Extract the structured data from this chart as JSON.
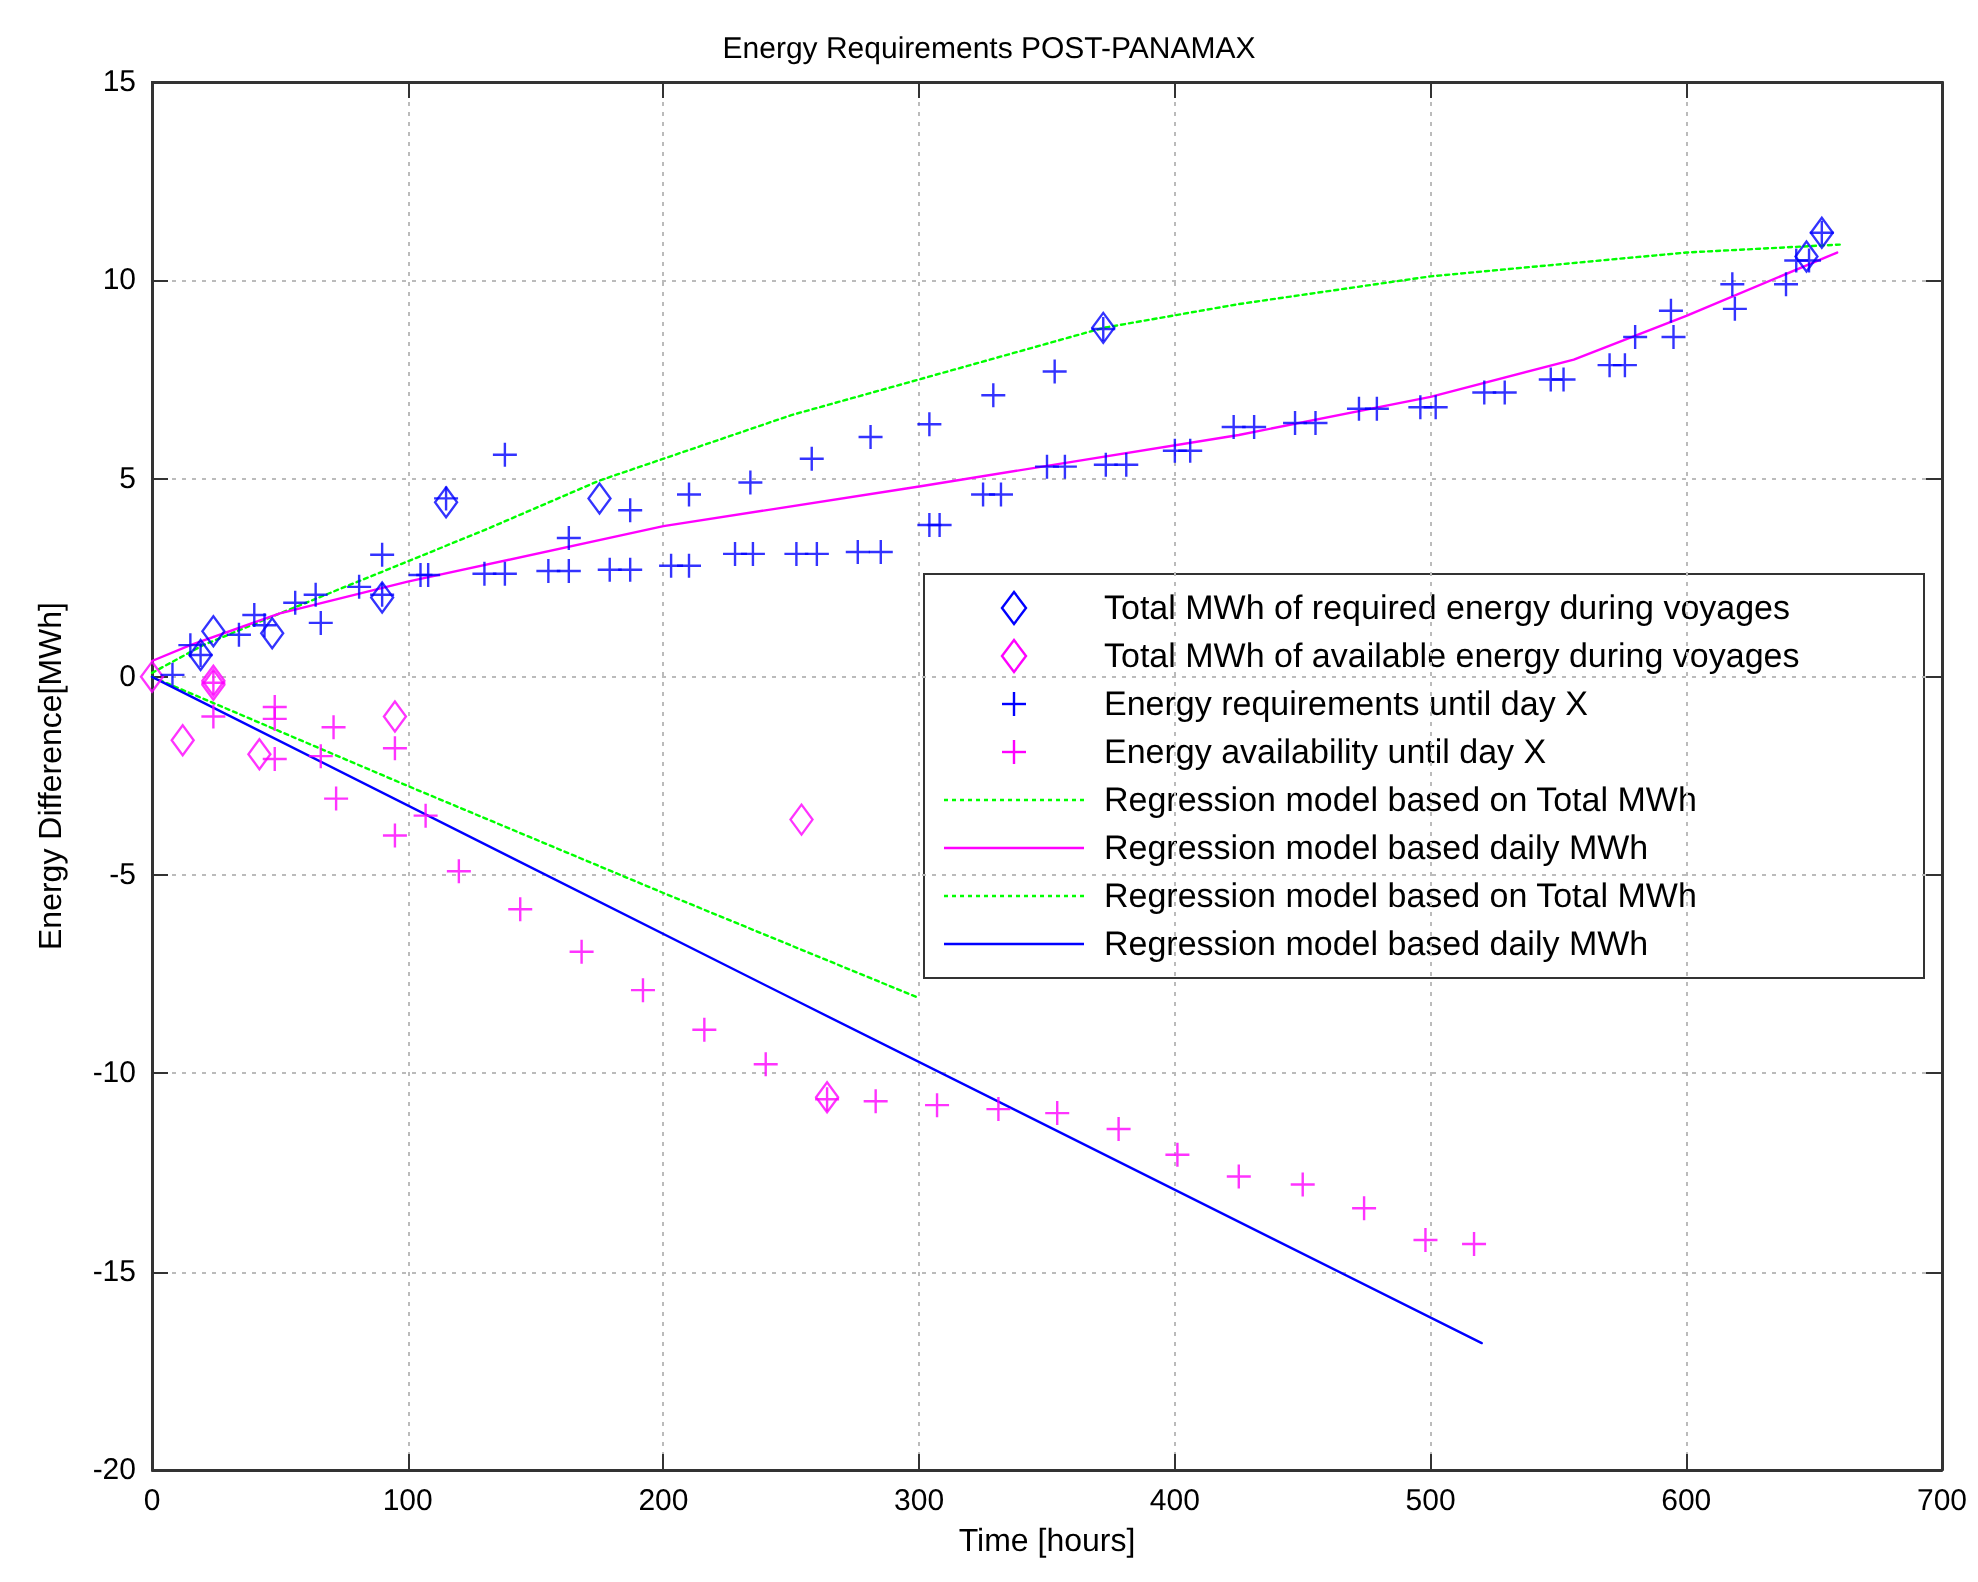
{
  "chart_data": {
    "type": "scatter",
    "title": "Energy Requirements POST-PANAMAX",
    "xlabel": "Time [hours]",
    "ylabel": "Energy Difference[MWh]",
    "xlim": [
      0,
      700
    ],
    "xticks": [
      0,
      100,
      200,
      300,
      400,
      500,
      600,
      700
    ],
    "ylim": [
      -20,
      15
    ],
    "yticks": [
      -20,
      -15,
      -10,
      -5,
      0,
      5,
      10,
      15
    ],
    "grid": true,
    "legend": "right",
    "series": [
      {
        "name": "Total MWh of required energy during voyages",
        "marker": "diamond",
        "color": "#0000ff",
        "x": [
          19,
          24,
          47,
          90,
          115,
          175,
          372,
          647,
          653
        ],
        "values": [
          0.55,
          1.15,
          1.1,
          2.0,
          4.4,
          4.5,
          8.8,
          10.6,
          11.2
        ]
      },
      {
        "name": "Total MWh of available energy during voyages",
        "marker": "diamond",
        "color": "#ff00ff",
        "x": [
          0,
          12,
          24,
          24,
          42,
          95,
          254,
          264
        ],
        "values": [
          0,
          -1.6,
          -0.1,
          -0.2,
          -1.95,
          -1.0,
          -3.6,
          -10.6
        ]
      },
      {
        "name": "Energy requirements until day X",
        "marker": "cross",
        "color": "#0000ff",
        "x": [
          8,
          15,
          19,
          34,
          40,
          44,
          56,
          64,
          66,
          81,
          90,
          90,
          105,
          108,
          115,
          130,
          138,
          138,
          155,
          163,
          163,
          179,
          187,
          187,
          203,
          210,
          210,
          228,
          235,
          234,
          252,
          260,
          258,
          276,
          285,
          281,
          304,
          308,
          304,
          325,
          332,
          329,
          350,
          357,
          353,
          373,
          381,
          372,
          400,
          406,
          423,
          431,
          447,
          455,
          472,
          479,
          496,
          502,
          521,
          529,
          547,
          552,
          570,
          576,
          580,
          594,
          595,
          618,
          619,
          639,
          643,
          648,
          653
        ],
        "values": [
          0.05,
          0.8,
          0.55,
          1.06,
          1.56,
          1.3,
          1.87,
          2.07,
          1.36,
          2.27,
          3.08,
          2.07,
          2.57,
          2.57,
          4.5,
          2.6,
          2.6,
          5.6,
          2.67,
          2.67,
          3.5,
          2.7,
          2.7,
          4.2,
          2.8,
          2.8,
          4.6,
          3.1,
          3.1,
          4.9,
          3.1,
          3.1,
          5.5,
          3.15,
          3.15,
          6.05,
          3.83,
          3.83,
          6.37,
          4.6,
          4.6,
          7.1,
          5.3,
          5.3,
          7.7,
          5.35,
          5.35,
          8.77,
          5.7,
          5.7,
          6.3,
          6.3,
          6.4,
          6.4,
          6.76,
          6.76,
          6.8,
          6.8,
          7.17,
          7.17,
          7.5,
          7.5,
          7.86,
          7.86,
          8.57,
          9.23,
          8.57,
          9.9,
          9.28,
          9.9,
          10.5,
          10.5,
          11.2
        ]
      },
      {
        "name": "Energy availability until day X",
        "marker": "cross",
        "color": "#ff00ff",
        "x": [
          24,
          24,
          48,
          48,
          48,
          66,
          71,
          72,
          95,
          95,
          107,
          120,
          144,
          168,
          192,
          216,
          240,
          264,
          283,
          307,
          331,
          354,
          378,
          401,
          425,
          450,
          474,
          498,
          517
        ],
        "values": [
          -1.0,
          -0.15,
          -0.76,
          -1.06,
          -2.07,
          -2.0,
          -1.27,
          -3.07,
          -1.8,
          -4.0,
          -3.5,
          -4.9,
          -5.86,
          -6.93,
          -7.9,
          -8.9,
          -9.77,
          -10.65,
          -10.7,
          -10.8,
          -10.9,
          -11.0,
          -11.4,
          -12.05,
          -12.6,
          -12.8,
          -13.4,
          -14.2,
          -14.3
        ]
      },
      {
        "name": "Regression model based on Total MWh",
        "type": "line",
        "marker": "none",
        "line_style": "dotted",
        "color": "#00ff00",
        "x": [
          0,
          20,
          50,
          90,
          130,
          175,
          250,
          300,
          372,
          425,
          500,
          600,
          660
        ],
        "values": [
          0.1,
          0.8,
          1.6,
          2.65,
          3.7,
          4.95,
          6.6,
          7.5,
          8.8,
          9.4,
          10.1,
          10.7,
          10.9
        ]
      },
      {
        "name": "Regression model based daily MWh",
        "type": "line",
        "marker": "none",
        "line_style": "solid",
        "color": "#ff00ff",
        "x": [
          0,
          15,
          50,
          100,
          200,
          300,
          425,
          500,
          556,
          600,
          659
        ],
        "values": [
          0.4,
          0.8,
          1.6,
          2.4,
          3.8,
          4.8,
          6.1,
          7.06,
          8.0,
          9.1,
          10.7
        ]
      },
      {
        "name": "Regression model based on Total MWh",
        "type": "line",
        "marker": "none",
        "line_style": "dotted",
        "color": "#00ff00",
        "x": [
          0,
          100,
          200,
          300
        ],
        "values": [
          0,
          -2.75,
          -5.45,
          -8.1
        ]
      },
      {
        "name": "Regression model based daily MWh",
        "type": "line",
        "marker": "none",
        "line_style": "solid",
        "color": "#0000ff",
        "x": [
          0,
          253,
          520
        ],
        "values": [
          0,
          -8.2,
          -16.8
        ]
      }
    ]
  }
}
